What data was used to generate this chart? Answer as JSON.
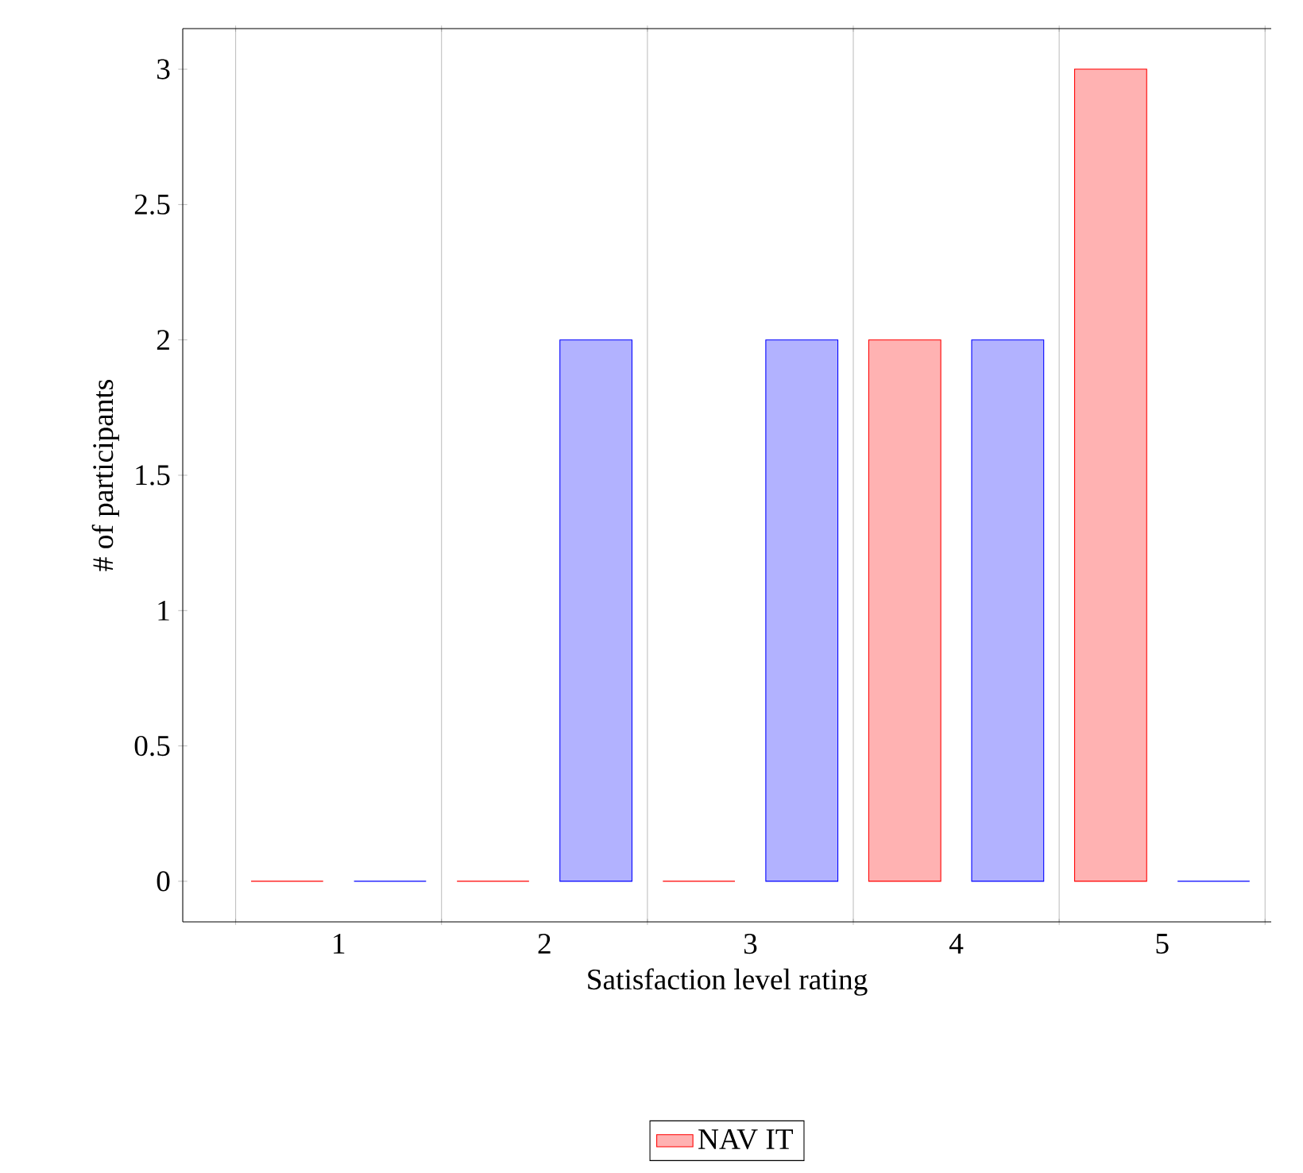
{
  "chart_data": {
    "type": "bar",
    "xlabel": "Satisfaction level rating",
    "ylabel": "# of participants",
    "categories": [
      "1",
      "2",
      "3",
      "4",
      "5"
    ],
    "series": [
      {
        "name": "NAV IT",
        "color": "#ff0000",
        "values": [
          0,
          0,
          0,
          2,
          3
        ]
      },
      {
        "color": "#0000ff",
        "values": [
          0,
          2,
          2,
          2,
          0
        ]
      }
    ],
    "ylim": [
      -0.15,
      3.15
    ],
    "yticks": [
      0,
      0.5,
      1,
      1.5,
      2,
      2.5,
      3
    ],
    "grid": "x",
    "legend": "bottom"
  }
}
